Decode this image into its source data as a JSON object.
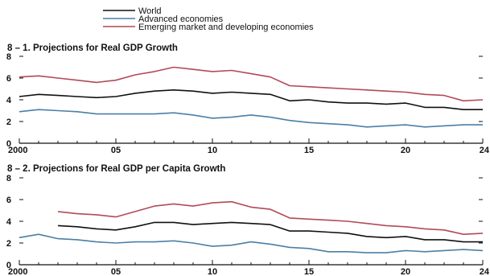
{
  "chart_data": [
    {
      "type": "line",
      "title": "8 – 1. Projections for Real GDP Growth",
      "xlabel": "",
      "ylabel": "",
      "xlim": [
        2000,
        2024
      ],
      "ylim": [
        0,
        8
      ],
      "xticks": [
        2000,
        2005,
        2010,
        2015,
        2020,
        2024
      ],
      "xtick_labels": [
        "2000",
        "05",
        "10",
        "15",
        "20",
        "24"
      ],
      "yticks": [
        0,
        2,
        4,
        6,
        8
      ],
      "ytick_labels": [
        "0",
        "2",
        "4",
        "6",
        "8"
      ],
      "series": [
        {
          "name": "World",
          "x": [
            2000,
            2001,
            2002,
            2003,
            2004,
            2005,
            2006,
            2007,
            2008,
            2009,
            2010,
            2011,
            2012,
            2013,
            2014,
            2015,
            2016,
            2017,
            2018,
            2019,
            2020,
            2021,
            2022,
            2023,
            2024
          ],
          "values": [
            4.3,
            4.5,
            4.4,
            4.3,
            4.2,
            4.3,
            4.6,
            4.8,
            4.9,
            4.8,
            4.6,
            4.7,
            4.6,
            4.5,
            3.9,
            4.0,
            3.8,
            3.7,
            3.7,
            3.6,
            3.7,
            3.3,
            3.3,
            3.1,
            3.1
          ]
        },
        {
          "name": "Advanced economies",
          "x": [
            2000,
            2001,
            2002,
            2003,
            2004,
            2005,
            2006,
            2007,
            2008,
            2009,
            2010,
            2011,
            2012,
            2013,
            2014,
            2015,
            2016,
            2017,
            2018,
            2019,
            2020,
            2021,
            2022,
            2023,
            2024
          ],
          "values": [
            2.9,
            3.1,
            3.0,
            2.9,
            2.7,
            2.7,
            2.7,
            2.7,
            2.8,
            2.6,
            2.3,
            2.4,
            2.6,
            2.4,
            2.1,
            1.9,
            1.8,
            1.7,
            1.5,
            1.6,
            1.7,
            1.5,
            1.6,
            1.7,
            1.7
          ]
        },
        {
          "name": "Emerging market and developing economies",
          "x": [
            2000,
            2001,
            2002,
            2003,
            2004,
            2005,
            2006,
            2007,
            2008,
            2009,
            2010,
            2011,
            2012,
            2013,
            2014,
            2015,
            2016,
            2017,
            2018,
            2019,
            2020,
            2021,
            2022,
            2023,
            2024
          ],
          "values": [
            6.1,
            6.2,
            6.0,
            5.8,
            5.6,
            5.8,
            6.3,
            6.6,
            7.0,
            6.8,
            6.6,
            6.7,
            6.4,
            6.1,
            5.3,
            5.2,
            5.1,
            5.0,
            4.9,
            4.8,
            4.7,
            4.5,
            4.4,
            3.9,
            4.0
          ]
        }
      ]
    },
    {
      "type": "line",
      "title": "8 – 2. Projections for Real GDP per Capita Growth",
      "xlabel": "",
      "ylabel": "",
      "xlim": [
        2000,
        2024
      ],
      "ylim": [
        0,
        8
      ],
      "xticks": [
        2000,
        2005,
        2010,
        2015,
        2020,
        2024
      ],
      "xtick_labels": [
        "2000",
        "05",
        "10",
        "15",
        "20",
        "24"
      ],
      "yticks": [
        0,
        2,
        4,
        6,
        8
      ],
      "ytick_labels": [
        "0",
        "2",
        "4",
        "6",
        "8"
      ],
      "series": [
        {
          "name": "World",
          "x": [
            2002,
            2003,
            2004,
            2005,
            2006,
            2007,
            2008,
            2009,
            2010,
            2011,
            2012,
            2013,
            2014,
            2015,
            2016,
            2017,
            2018,
            2019,
            2020,
            2021,
            2022,
            2023,
            2024
          ],
          "values": [
            3.6,
            3.5,
            3.3,
            3.2,
            3.5,
            3.9,
            3.9,
            3.7,
            3.8,
            3.9,
            3.8,
            3.7,
            3.1,
            3.1,
            3.0,
            2.9,
            2.6,
            2.5,
            2.6,
            2.3,
            2.3,
            2.1,
            2.1
          ]
        },
        {
          "name": "Advanced economies",
          "x": [
            2000,
            2001,
            2002,
            2003,
            2004,
            2005,
            2006,
            2007,
            2008,
            2009,
            2010,
            2011,
            2012,
            2013,
            2014,
            2015,
            2016,
            2017,
            2018,
            2019,
            2020,
            2021,
            2022,
            2023,
            2024
          ],
          "values": [
            2.5,
            2.8,
            2.4,
            2.3,
            2.1,
            2.0,
            2.1,
            2.1,
            2.2,
            2.0,
            1.7,
            1.8,
            2.1,
            1.9,
            1.6,
            1.5,
            1.2,
            1.2,
            1.1,
            1.1,
            1.3,
            1.2,
            1.3,
            1.4,
            1.3
          ]
        },
        {
          "name": "Emerging market and developing economies",
          "x": [
            2002,
            2003,
            2004,
            2005,
            2006,
            2007,
            2008,
            2009,
            2010,
            2011,
            2012,
            2013,
            2014,
            2015,
            2016,
            2017,
            2018,
            2019,
            2020,
            2021,
            2022,
            2023,
            2024
          ],
          "values": [
            4.9,
            4.7,
            4.6,
            4.4,
            4.9,
            5.4,
            5.6,
            5.4,
            5.7,
            5.8,
            5.3,
            5.1,
            4.3,
            4.2,
            4.1,
            4.0,
            3.8,
            3.6,
            3.5,
            3.3,
            3.2,
            2.8,
            2.9
          ]
        }
      ]
    }
  ],
  "colors": {
    "World": "#111111",
    "Advanced economies": "#4a7fa7",
    "Emerging market and developing economies": "#b24a55",
    "axis": "#111111"
  }
}
